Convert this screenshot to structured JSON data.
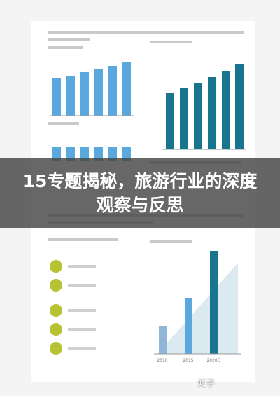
{
  "overlay": {
    "title": "15专题揭秘，旅游行业的深度观察与反思"
  },
  "charts": {
    "bottom_right": {
      "years": [
        "2010",
        "2015",
        "2020E"
      ]
    }
  },
  "watermark": {
    "site": "知乎"
  }
}
